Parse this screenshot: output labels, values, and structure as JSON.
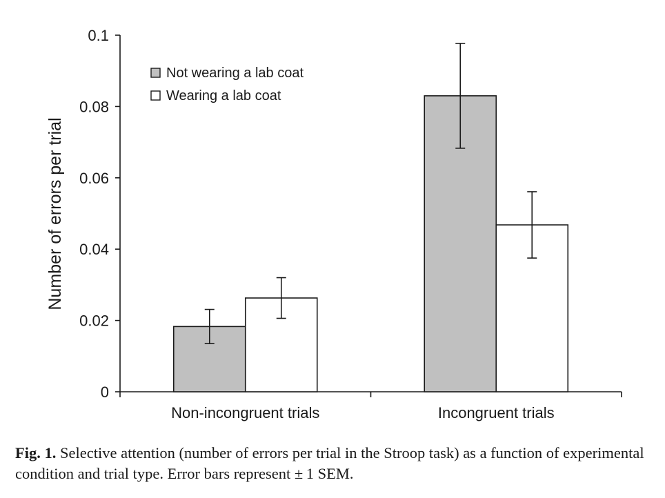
{
  "chart_data": {
    "type": "bar",
    "title": "",
    "xlabel": "",
    "ylabel": "Number of errors per trial",
    "ylim": [
      0,
      0.1
    ],
    "yticks": [
      "0",
      "0.02",
      "0.04",
      "0.06",
      "0.08",
      "0.1"
    ],
    "categories": [
      "Non-incongruent trials",
      "Incongruent trials"
    ],
    "series": [
      {
        "name": "Not wearing a lab coat",
        "color": "#c0c0c0",
        "values": [
          0.0183,
          0.083
        ],
        "error": [
          0.0048,
          0.0147
        ]
      },
      {
        "name": "Wearing a lab coat",
        "color": "#ffffff",
        "values": [
          0.0263,
          0.0468
        ],
        "error": [
          0.0057,
          0.0093
        ]
      }
    ],
    "legend_position": "top-left",
    "grid": false
  },
  "caption": {
    "label": "Fig. 1.",
    "text": " Selective attention (number of errors per trial in the Stroop task) as a function of experimental condition and trial type. Error bars represent ± 1 SEM."
  }
}
